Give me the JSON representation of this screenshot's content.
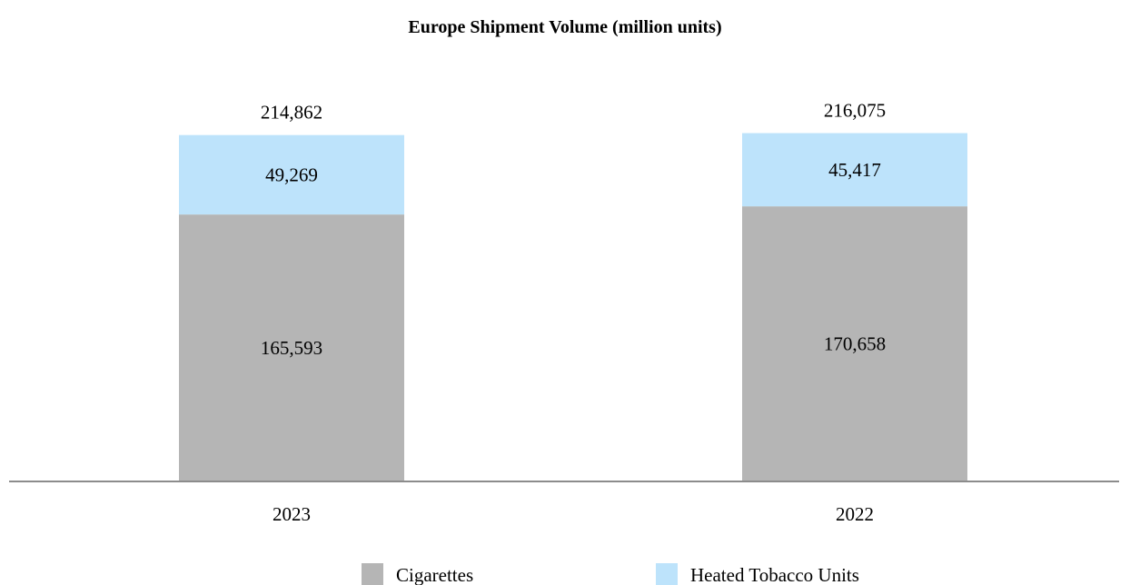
{
  "chart_data": {
    "type": "bar",
    "stacked": true,
    "title": "Europe Shipment Volume (million units)",
    "xlabel": "",
    "ylabel": "",
    "categories": [
      "2023",
      "2022"
    ],
    "series": [
      {
        "name": "Cigarettes",
        "values": [
          165593,
          170658
        ],
        "labels": [
          "165,593",
          "170,658"
        ],
        "color": "#b5b5b5"
      },
      {
        "name": "Heated Tobacco Units",
        "values": [
          49269,
          45417
        ],
        "labels": [
          "49,269",
          "45,417"
        ],
        "color": "#bde3fb"
      }
    ],
    "totals": [
      214862,
      216075
    ],
    "total_labels": [
      "214,862",
      "216,075"
    ],
    "ylim": [
      0,
      250000
    ],
    "grid": false,
    "legend_position": "bottom",
    "axis_color": "#8c8c8c"
  }
}
